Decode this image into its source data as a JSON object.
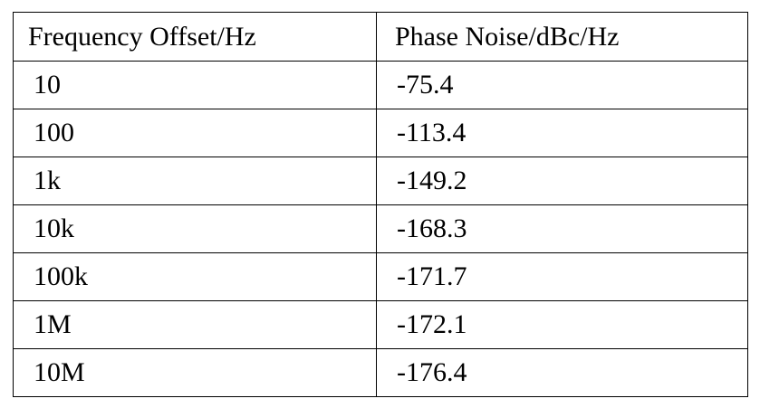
{
  "table": {
    "headers": [
      "Frequency Offset/Hz",
      "Phase Noise/dBc/Hz"
    ],
    "rows": [
      [
        "10",
        "-75.4"
      ],
      [
        "100",
        "-113.4"
      ],
      [
        "1k",
        "-149.2"
      ],
      [
        "10k",
        "-168.3"
      ],
      [
        "100k",
        "-171.7"
      ],
      [
        "1M",
        "-172.1"
      ],
      [
        "10M",
        "-176.4"
      ]
    ]
  }
}
